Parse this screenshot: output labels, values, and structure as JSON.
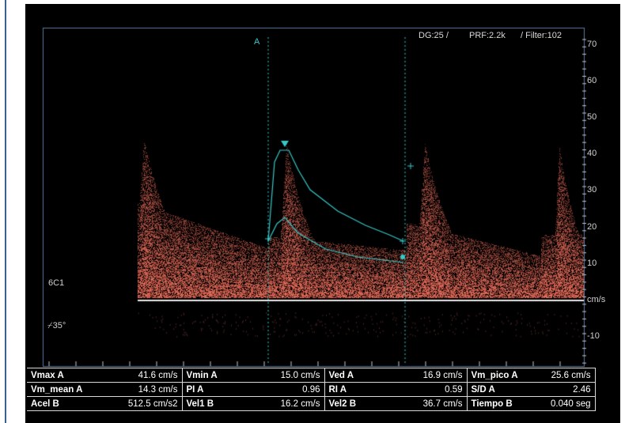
{
  "header": {
    "dg": "DG:25 /",
    "prf": "PRF:2.2k",
    "filter": "/ Filter:102"
  },
  "markers": {
    "a": "A"
  },
  "probe": "6C1",
  "angle": "35°",
  "scale": {
    "ticks": [
      "70",
      "60",
      "50",
      "40",
      "30",
      "20",
      "10",
      "cm/s",
      "-10"
    ]
  },
  "measurements": [
    [
      {
        "label": "Vmax  A",
        "value": "41.6  cm/s"
      },
      {
        "label": "Vmin  A",
        "value": "15.0  cm/s"
      },
      {
        "label": "Ved  A",
        "value": "16.9  cm/s"
      },
      {
        "label": "Vm_pico  A",
        "value": "25.6  cm/s"
      }
    ],
    [
      {
        "label": "Vm_mean  A",
        "value": "14.3  cm/s"
      },
      {
        "label": "PI  A",
        "value": "0.96"
      },
      {
        "label": "RI  A",
        "value": "0.59"
      },
      {
        "label": "S/D  A",
        "value": "2.46"
      }
    ],
    [
      {
        "label": "Acel  B",
        "value": "512.5  cm/s2"
      },
      {
        "label": "Vel1  B",
        "value": "16.2  cm/s"
      },
      {
        "label": "Vel2  B",
        "value": "36.7  cm/s"
      },
      {
        "label": "Tiempo  B",
        "value": "0.040  seg"
      }
    ]
  ],
  "colors": {
    "accent": "#37c8c8",
    "waveform": "#e0a08a",
    "background": "#000000"
  }
}
